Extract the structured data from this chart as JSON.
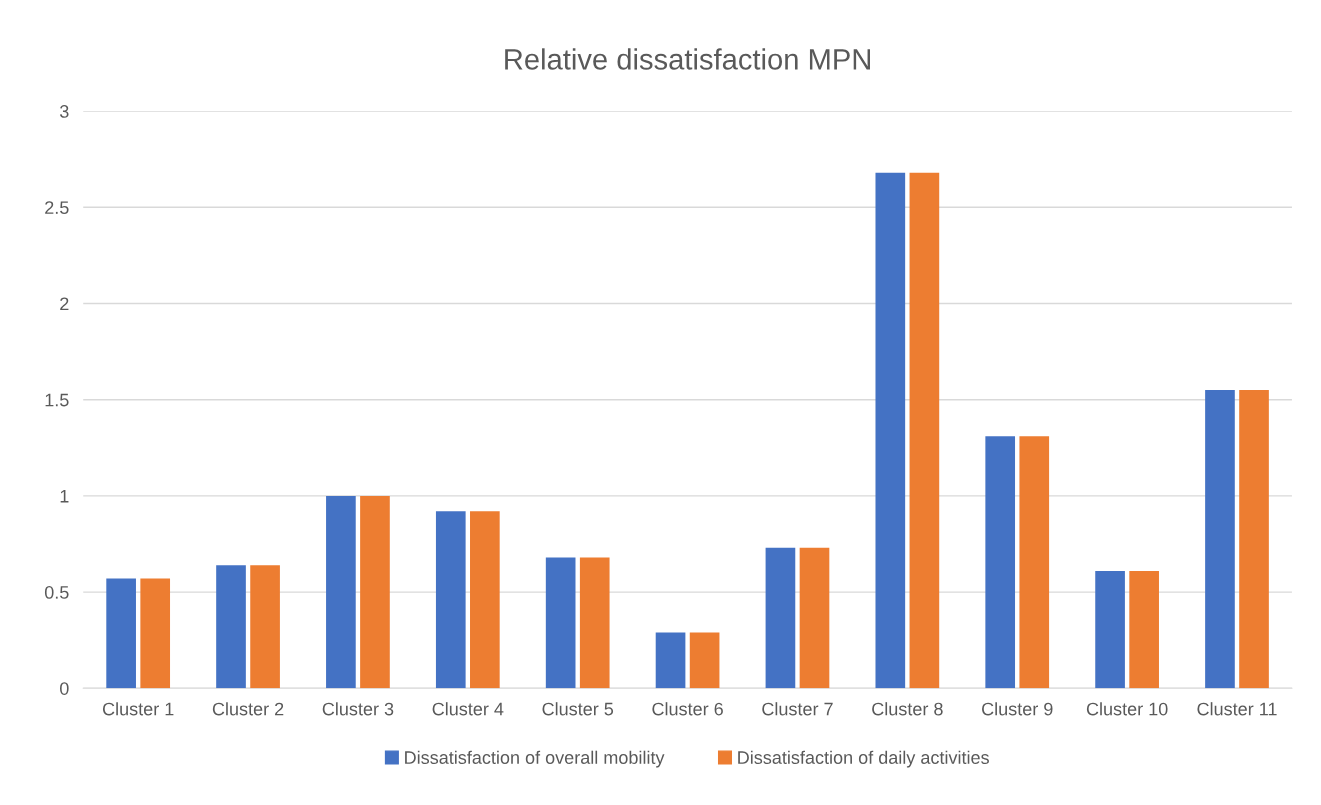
{
  "chart_data": {
    "type": "bar",
    "title": "Relative dissatisfaction MPN",
    "categories": [
      "Cluster 1",
      "Cluster 2",
      "Cluster 3",
      "Cluster 4",
      "Cluster 5",
      "Cluster 6",
      "Cluster 7",
      "Cluster 8",
      "Cluster 9",
      "Cluster 10",
      "Cluster 11"
    ],
    "series": [
      {
        "name": "Dissatisfaction of overall mobility",
        "color": "#4472c4",
        "values": [
          0.57,
          0.64,
          1.0,
          0.92,
          0.68,
          0.29,
          0.73,
          2.68,
          1.31,
          0.61,
          1.55
        ]
      },
      {
        "name": "Dissatisfaction of daily activities",
        "color": "#ed7d31",
        "values": [
          0.57,
          0.64,
          1.0,
          0.92,
          0.68,
          0.29,
          0.73,
          2.68,
          1.31,
          0.61,
          1.55
        ]
      }
    ],
    "ylim": [
      0,
      3
    ],
    "yticks": [
      0,
      0.5,
      1,
      1.5,
      2,
      2.5,
      3
    ],
    "grid": "y",
    "legend": "bottom"
  }
}
